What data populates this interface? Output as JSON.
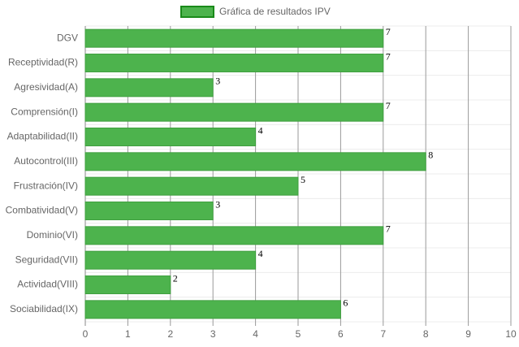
{
  "chart_data": {
    "type": "bar",
    "orientation": "horizontal",
    "legend": "top",
    "series": [
      {
        "name": "Gráfica de resultados IPV",
        "color": "#4db34d",
        "values": [
          7,
          7,
          3,
          7,
          4,
          8,
          5,
          3,
          7,
          4,
          2,
          6
        ]
      }
    ],
    "categories": [
      "DGV",
      "Receptividad(R)",
      "Agresividad(A)",
      "Comprensión(I)",
      "Adaptabilidad(II)",
      "Autocontrol(III)",
      "Frustración(IV)",
      "Combatividad(V)",
      "Dominio(VI)",
      "Seguridad(VII)",
      "Actividad(VIII)",
      "Sociabilidad(IX)"
    ],
    "xlim": [
      0,
      10
    ],
    "xticks": [
      0,
      1,
      2,
      3,
      4,
      5,
      6,
      7,
      8,
      9,
      10
    ],
    "grid": true
  }
}
